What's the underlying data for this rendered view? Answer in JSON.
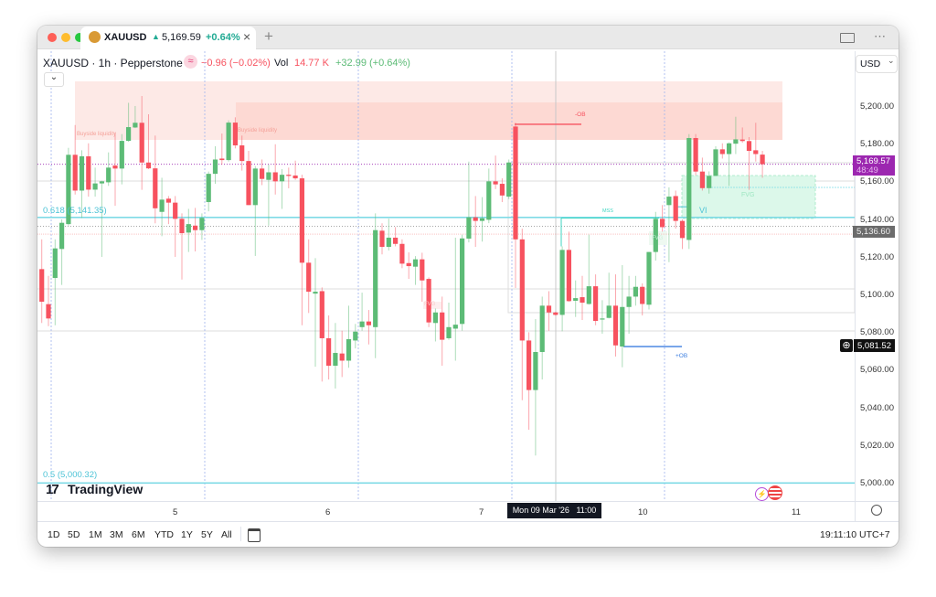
{
  "window": {
    "tab": {
      "symbol": "XAUUSD",
      "arrow": "▲",
      "price": "5,169.59",
      "change": "+0.64%",
      "close": "×"
    },
    "new_tab": "+",
    "right_icons": [
      "layout-panel-icon",
      "more-dots-icon"
    ]
  },
  "header": {
    "title": "XAUUSD · 1h · Pepperstone",
    "badge": "≈",
    "change": "−0.96 (−0.02%)",
    "vol_label": "Vol",
    "vol_value": "14.77 K",
    "day_change": "+32.99 (+0.64%)",
    "collapse": "⌄"
  },
  "currency": {
    "label": "USD",
    "caret": "⌄"
  },
  "annotations": {
    "buyside_1": "Buyside liquidity",
    "buyside_2": "Buyside liquidity",
    "ob_minus": "-OB",
    "ob_plus": "+OB",
    "mss": "MSS",
    "fvg": "FVG",
    "fvg_small": "FVG",
    "fvg_pink": "FVG",
    "vi": "VI",
    "fib_618": "0.618 (5,141.35)",
    "fib_5": "0.5 (5,000.32)"
  },
  "price_axis": {
    "labels": [
      "5,200.00",
      "5,180.00",
      "5,160.00",
      "5,140.00",
      "5,120.00",
      "5,100.00",
      "5,080.00",
      "5,060.00",
      "5,040.00",
      "5,020.00",
      "5,000.00"
    ],
    "current_price": "5,169.57",
    "countdown": "48:49",
    "tag_gray": "5,136.60",
    "tag_black": "5,081.52",
    "add_icon": "⊕"
  },
  "time_axis": {
    "labels": [
      "5",
      "6",
      "7",
      "10",
      "11"
    ],
    "crosshair": "Mon 09 Mar '26   11:00"
  },
  "logo": "TradingView",
  "bottom": {
    "ranges": [
      "1D",
      "5D",
      "1M",
      "3M",
      "6M",
      "YTD",
      "1Y",
      "5Y",
      "All"
    ],
    "clock": "19:11:10 UTC+7"
  },
  "colors": {
    "up": "#5cbb76",
    "down": "#f7525f",
    "current": "#9c27b0",
    "fib": "#7fdbe6",
    "ob_plus": "#3d7fe0",
    "fvg": "#d8f7e8"
  },
  "chart_data": {
    "type": "candlestick",
    "symbol": "XAUUSD",
    "interval": "1h",
    "ylim": [
      4992,
      5225
    ],
    "ohlc": [
      [
        5113.9,
        5129.7,
        5085.3,
        5096.6
      ],
      [
        5095.3,
        5110.3,
        5083.6,
        5087.7
      ],
      [
        5109.2,
        5129.7,
        5084.1,
        5124.9
      ],
      [
        5124.6,
        5140.3,
        5105.5,
        5138.5
      ],
      [
        5137.8,
        5178.3,
        5137.0,
        5174.6
      ],
      [
        5174.6,
        5190.4,
        5153.5,
        5155.6
      ],
      [
        5155.6,
        5177.0,
        5141.1,
        5173.8
      ],
      [
        5173.8,
        5180.7,
        5152.4,
        5156.1
      ],
      [
        5156.1,
        5167.8,
        5152.4,
        5159.4
      ],
      [
        5159.4,
        5160.8,
        5120.4,
        5160.5
      ],
      [
        5160.0,
        5175.9,
        5158.1,
        5167.8
      ],
      [
        5168.9,
        5186.4,
        5147.5,
        5167.3
      ],
      [
        5167.3,
        5185.6,
        5158.9,
        5182.0
      ],
      [
        5182.0,
        5202.2,
        5181.5,
        5189.3
      ],
      [
        5189.1,
        5200.5,
        5188.8,
        5191.6
      ],
      [
        5191.6,
        5205.8,
        5156.0,
        5170.5
      ],
      [
        5170.5,
        5196.1,
        5167.0,
        5167.4
      ],
      [
        5167.4,
        5184.8,
        5138.2,
        5146.2
      ],
      [
        5144.3,
        5162.4,
        5131.4,
        5150.8
      ],
      [
        5151.3,
        5152.7,
        5137.8,
        5149.2
      ],
      [
        5149.2,
        5152.7,
        5120.4,
        5140.6
      ],
      [
        5140.6,
        5143.5,
        5108.4,
        5133.0
      ],
      [
        5133.3,
        5145.9,
        5123.0,
        5137.8
      ],
      [
        5137.0,
        5146.4,
        5123.3,
        5134.6
      ],
      [
        5134.6,
        5143.5,
        5129.4,
        5141.1
      ],
      [
        5149.5,
        5165.7,
        5144.6,
        5164.5
      ],
      [
        5164.5,
        5179.1,
        5159.2,
        5172.1
      ],
      [
        5172.6,
        5185.9,
        5169.4,
        5171.8
      ],
      [
        5171.8,
        5192.9,
        5171.0,
        5191.7
      ],
      [
        5191.7,
        5194.5,
        5178.0,
        5179.6
      ],
      [
        5179.6,
        5184.8,
        5166.2,
        5171.3
      ],
      [
        5171.3,
        5176.7,
        5147.9,
        5147.9
      ],
      [
        5147.9,
        5168.6,
        5120.9,
        5167.3
      ],
      [
        5167.3,
        5172.1,
        5158.5,
        5161.8
      ],
      [
        5161.3,
        5169.4,
        5137.0,
        5165.3
      ],
      [
        5165.3,
        5180.2,
        5153.5,
        5160.5
      ],
      [
        5160.5,
        5167.0,
        5145.9,
        5164.0
      ],
      [
        5164.0,
        5167.8,
        5156.8,
        5163.4
      ],
      [
        5163.6,
        5171.5,
        5161.3,
        5162.1
      ],
      [
        5162.1,
        5164.0,
        5084.1,
        5117.3
      ],
      [
        5117.3,
        5129.7,
        5090.6,
        5101.9
      ],
      [
        5100.9,
        5119.7,
        5062.1,
        5101.9
      ],
      [
        5102.2,
        5104.2,
        5054.2,
        5077.2
      ],
      [
        5077.2,
        5089.3,
        5055.3,
        5062.6
      ],
      [
        5062.6,
        5085.3,
        5050.5,
        5069.4
      ],
      [
        5069.1,
        5081.2,
        5056.6,
        5065.3
      ],
      [
        5065.3,
        5094.5,
        5061.5,
        5076.7
      ],
      [
        5076.0,
        5084.8,
        5071.8,
        5080.7
      ],
      [
        5083.1,
        5101.4,
        5081.2,
        5086.1
      ],
      [
        5086.1,
        5092.2,
        5073.9,
        5084.1
      ],
      [
        5083.1,
        5143.5,
        5066.6,
        5134.6
      ],
      [
        5134.3,
        5138.2,
        5121.7,
        5125.7
      ],
      [
        5125.7,
        5140.7,
        5123.8,
        5130.6
      ],
      [
        5130.6,
        5136.2,
        5126.0,
        5127.3
      ],
      [
        5127.3,
        5129.7,
        5114.4,
        5116.8
      ],
      [
        5117.1,
        5122.8,
        5108.7,
        5115.5
      ],
      [
        5115.2,
        5120.8,
        5105.5,
        5119.1
      ],
      [
        5119.1,
        5122.6,
        5096.6,
        5107.9
      ],
      [
        5108.7,
        5109.5,
        5083.1,
        5085.6
      ],
      [
        5085.3,
        5093.0,
        5075.5,
        5090.9
      ],
      [
        5090.9,
        5099.3,
        5062.6,
        5076.4
      ],
      [
        5077.2,
        5096.1,
        5076.4,
        5083.1
      ],
      [
        5082.3,
        5130.6,
        5065.3,
        5084.4
      ],
      [
        5084.8,
        5132.2,
        5081.2,
        5130.2
      ],
      [
        5130.1,
        5171.0,
        5128.1,
        5141.4
      ],
      [
        5141.4,
        5152.7,
        5125.7,
        5139.5
      ],
      [
        5139.5,
        5152.1,
        5128.5,
        5140.9
      ],
      [
        5140.1,
        5167.3,
        5138.3,
        5160.5
      ],
      [
        5160.5,
        5174.2,
        5156.4,
        5158.9
      ],
      [
        5159.2,
        5162.1,
        5149.5,
        5153.0
      ],
      [
        5152.4,
        5172.1,
        5151.1,
        5170.5
      ],
      [
        5189.6,
        5191.6,
        5103.9,
        5129.7
      ],
      [
        5129.7,
        5135.4,
        5044.3,
        5076.0
      ],
      [
        5076.0,
        5080.4,
        5028.6,
        5049.7
      ],
      [
        5049.7,
        5087.4,
        5014.9,
        5069.9
      ],
      [
        5069.9,
        5099.3,
        5055.3,
        5094.5
      ],
      [
        5094.5,
        5102.2,
        5081.2,
        5090.9
      ],
      [
        5090.9,
        5091.2,
        5089.3,
        5089.6
      ],
      [
        5089.6,
        5126.0,
        5080.9,
        5124.1
      ],
      [
        5124.1,
        5133.8,
        5096.6,
        5096.9
      ],
      [
        5097.1,
        5107.9,
        5088.5,
        5098.5
      ],
      [
        5099.0,
        5110.3,
        5086.9,
        5096.1
      ],
      [
        5095.4,
        5132.2,
        5095.0,
        5104.8
      ],
      [
        5104.8,
        5111.1,
        5084.1,
        5086.4
      ],
      [
        5087.4,
        5097.4,
        5079.6,
        5087.7
      ],
      [
        5088.0,
        5112.0,
        5087.7,
        5094.5
      ],
      [
        5094.5,
        5111.1,
        5067.5,
        5073.4
      ],
      [
        5072.8,
        5116.0,
        5061.8,
        5093.8
      ],
      [
        5093.8,
        5110.3,
        5079.6,
        5099.3
      ],
      [
        5099.3,
        5110.3,
        5094.5,
        5104.5
      ],
      [
        5104.5,
        5106.3,
        5089.3,
        5095.4
      ],
      [
        5095.0,
        5123.0,
        5092.5,
        5123.0
      ],
      [
        5123.0,
        5144.3,
        5118.4,
        5140.6
      ],
      [
        5140.6,
        5147.9,
        5133.8,
        5136.2
      ],
      [
        5147.9,
        5157.3,
        5117.6,
        5152.4
      ],
      [
        5152.7,
        5155.6,
        5135.4,
        5139.5
      ],
      [
        5139.5,
        5140.3,
        5124.6,
        5130.4
      ],
      [
        5129.4,
        5185.6,
        5124.6,
        5183.5
      ],
      [
        5183.5,
        5185.6,
        5163.7,
        5165.7
      ],
      [
        5165.7,
        5173.1,
        5155.6,
        5156.9
      ],
      [
        5156.9,
        5165.8,
        5154.0,
        5163.4
      ],
      [
        5163.4,
        5179.1,
        5163.4,
        5177.5
      ],
      [
        5177.5,
        5180.7,
        5172.6,
        5175.0
      ],
      [
        5175.0,
        5181.2,
        5158.1,
        5180.7
      ],
      [
        5180.5,
        5194.8,
        5175.0,
        5182.8
      ],
      [
        5182.7,
        5189.1,
        5181.0,
        5181.9
      ],
      [
        5181.9,
        5184.0,
        5156.0,
        5176.7
      ],
      [
        5177.0,
        5191.6,
        5171.0,
        5175.0
      ],
      [
        5174.7,
        5176.7,
        5162.4,
        5169.6
      ]
    ],
    "levels": {
      "fib_618": 5141.35,
      "fib_5": 5000.32,
      "current": 5169.57,
      "gray": 5136.6,
      "black": 5081.52
    }
  }
}
